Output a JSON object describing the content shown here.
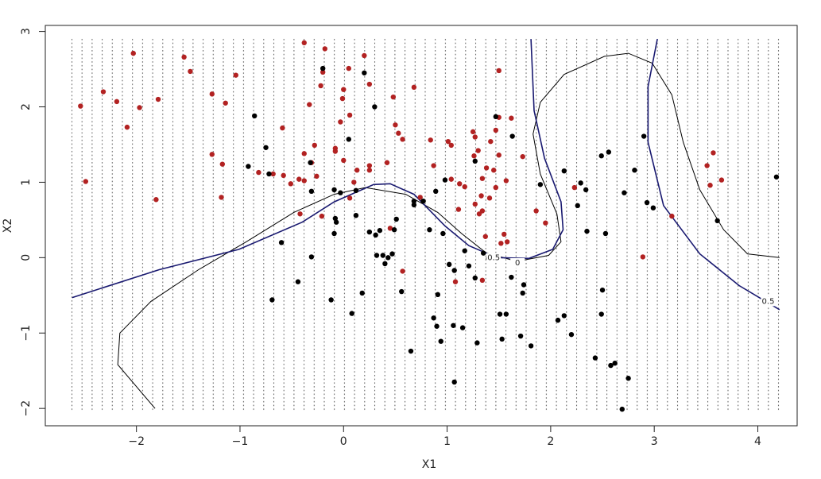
{
  "chart_data": {
    "type": "scatter",
    "xlabel": "X1",
    "ylabel": "X2",
    "xlim": [
      -2.88,
      4.38
    ],
    "ylim": [
      -2.23,
      3.08
    ],
    "xticks": [
      {
        "value": -2,
        "label": "−2"
      },
      {
        "value": -1,
        "label": "−1"
      },
      0,
      1,
      2,
      3,
      4
    ],
    "yticks": [
      {
        "value": -2,
        "label": "−2"
      },
      {
        "value": -1,
        "label": "−1"
      },
      0,
      1,
      2,
      3
    ],
    "series": [
      {
        "color": "#b22222",
        "x": [
          -2.54,
          -2.49,
          -2.32,
          -2.19,
          -2.09,
          -2.03,
          -1.97,
          -1.81,
          -1.79,
          -1.54,
          -1.48,
          -1.27,
          -1.27,
          -1.17,
          -1.18,
          -1.14,
          -1.04,
          -0.82,
          -0.68,
          -0.59,
          -0.58,
          -0.51,
          -0.42,
          -0.43,
          -0.38,
          -0.38,
          -0.38,
          -0.33,
          -0.31,
          -0.28,
          -0.26,
          -0.22,
          -0.2,
          -0.18,
          -0.21,
          -0.08,
          -0.08,
          -0.03,
          -0.01,
          0,
          0,
          0.05,
          0.06,
          0.06,
          0.1,
          0.13,
          0.2,
          0.25,
          0.25,
          0.25,
          0.42,
          0.45,
          0.48,
          0.5,
          0.53,
          0.57,
          0.57,
          0.68,
          0.74,
          0.84,
          0.87,
          1.01,
          1.04,
          1.04,
          1.08,
          1.11,
          1.12,
          1.17,
          1.25,
          1.26,
          1.27,
          1.27,
          1.3,
          1.31,
          1.33,
          1.34,
          1.34,
          1.34,
          1.37,
          1.38,
          1.41,
          1.42,
          1.45,
          1.47,
          1.47,
          1.5,
          1.5,
          1.5,
          1.52,
          1.55,
          1.57,
          1.58,
          1.62,
          1.73,
          1.86,
          1.95,
          2.23,
          2.89,
          3.17,
          3.51,
          3.54,
          3.57,
          3.65
        ],
        "y": [
          2.01,
          1.01,
          2.2,
          2.07,
          1.73,
          2.71,
          1.99,
          0.77,
          2.1,
          2.66,
          2.47,
          2.17,
          1.37,
          1.24,
          0.8,
          2.05,
          2.42,
          1.13,
          1.11,
          1.72,
          1.09,
          0.98,
          0.58,
          1.04,
          1.38,
          2.85,
          1.02,
          2.03,
          1.26,
          1.49,
          1.08,
          2.28,
          2.46,
          2.77,
          0.55,
          1.45,
          1.41,
          1.8,
          2.11,
          2.23,
          1.29,
          2.51,
          1.89,
          0.79,
          1.0,
          1.16,
          2.68,
          2.3,
          1.22,
          1.16,
          1.26,
          0.39,
          2.13,
          1.76,
          1.65,
          1.57,
          -0.18,
          2.26,
          0.8,
          1.56,
          1.22,
          1.54,
          1.49,
          1.04,
          -0.32,
          0.64,
          0.98,
          0.94,
          1.67,
          1.35,
          1.6,
          0.71,
          1.42,
          0.58,
          0.82,
          -0.3,
          0.62,
          1.05,
          0.28,
          1.19,
          0.79,
          1.54,
          1.16,
          1.69,
          0.93,
          2.48,
          1.36,
          1.86,
          0.19,
          0.31,
          1.02,
          0.21,
          1.85,
          1.34,
          0.62,
          0.46,
          0.93,
          0.01,
          0.55,
          1.22,
          0.96,
          1.39,
          1.03
        ]
      },
      {
        "color": "#000000",
        "x": [
          -0.92,
          -0.86,
          -0.75,
          -0.72,
          -0.69,
          -0.6,
          -0.44,
          -0.32,
          -0.31,
          -0.31,
          -0.2,
          -0.12,
          -0.09,
          -0.09,
          -0.08,
          -0.07,
          -0.03,
          0.05,
          0.08,
          0.12,
          0.12,
          0.18,
          0.2,
          0.25,
          0.3,
          0.31,
          0.32,
          0.35,
          0.38,
          0.4,
          0.43,
          0.47,
          0.49,
          0.51,
          0.56,
          0.65,
          0.68,
          0.68,
          0.77,
          0.83,
          0.87,
          0.9,
          0.89,
          0.91,
          0.94,
          0.96,
          0.98,
          1.02,
          1.06,
          1.07,
          1.07,
          1.15,
          1.17,
          1.21,
          1.27,
          1.27,
          1.29,
          1.35,
          1.4,
          1.47,
          1.51,
          1.53,
          1.57,
          1.62,
          1.63,
          1.71,
          1.73,
          1.74,
          1.81,
          1.9,
          2.07,
          2.13,
          2.13,
          2.2,
          2.26,
          2.29,
          2.34,
          2.35,
          2.43,
          2.49,
          2.49,
          2.5,
          2.53,
          2.56,
          2.58,
          2.62,
          2.69,
          2.71,
          2.75,
          2.81,
          2.9,
          2.93,
          2.99,
          3.61,
          4.18
        ],
        "y": [
          1.21,
          1.88,
          1.46,
          1.11,
          -0.56,
          0.2,
          -0.32,
          1.26,
          0.88,
          0.01,
          2.51,
          -0.56,
          0.9,
          0.32,
          0.52,
          0.47,
          0.86,
          1.57,
          -0.74,
          0.89,
          0.56,
          -0.47,
          2.45,
          0.34,
          2.0,
          0.3,
          0.03,
          0.36,
          0.03,
          -0.08,
          0,
          0.05,
          0.37,
          0.51,
          -0.45,
          -1.24,
          0.75,
          0.7,
          0.75,
          0.37,
          -0.8,
          -0.91,
          0.88,
          -0.49,
          -1.11,
          0.32,
          1.03,
          -0.09,
          -0.9,
          -0.17,
          -1.65,
          -0.93,
          0.09,
          -0.11,
          -0.27,
          1.28,
          -1.13,
          0.06,
          -0.01,
          1.87,
          -0.75,
          -1.08,
          -0.75,
          -0.26,
          1.61,
          -1.04,
          -0.47,
          -0.36,
          -1.17,
          0.97,
          -0.83,
          1.15,
          -0.77,
          -1.02,
          0.69,
          0.99,
          0.9,
          0.35,
          -1.33,
          1.35,
          -0.75,
          -0.43,
          0.32,
          1.4,
          -1.43,
          -1.4,
          -2.01,
          0.86,
          -1.6,
          1.16,
          1.61,
          0.73,
          0.66,
          0.49,
          1.07
        ]
      }
    ],
    "contours": [
      {
        "color": "#000000",
        "x": [
          -1.82,
          -2.18,
          -2.16,
          -1.86,
          -1.4,
          -0.94,
          -0.48,
          -0.09,
          0.21,
          0.6,
          0.91,
          1.14,
          1.37,
          1.67,
          1.98,
          2.1,
          2.06,
          1.9,
          1.83,
          1.9,
          2.13,
          2.52,
          2.75,
          2.98,
          3.17,
          3.28,
          3.44,
          3.67,
          3.9,
          4.21
        ],
        "y": [
          -2.0,
          -1.42,
          -1.0,
          -0.58,
          -0.16,
          0.21,
          0.6,
          0.84,
          0.93,
          0.84,
          0.6,
          0.32,
          0.07,
          -0.05,
          0.03,
          0.21,
          0.58,
          1.11,
          1.64,
          2.06,
          2.43,
          2.67,
          2.71,
          2.58,
          2.16,
          1.53,
          0.9,
          0.37,
          0.05,
          0.0
        ]
      },
      {
        "color": "#191970",
        "x": [
          -2.62,
          -1.78,
          -1.01,
          -0.4,
          -0.09,
          0.29,
          0.45,
          0.68,
          0.98,
          1.21,
          1.48,
          1.79,
          2.02,
          2.12,
          2.1,
          1.94,
          1.84,
          1.81
        ],
        "y": [
          -0.53,
          -0.16,
          0.11,
          0.47,
          0.74,
          0.97,
          0.98,
          0.84,
          0.42,
          0.16,
          0.0,
          -0.01,
          0.11,
          0.37,
          0.74,
          1.32,
          1.95,
          2.9
        ]
      },
      {
        "color": "#191970",
        "x": [
          3.03,
          2.94,
          2.94,
          3.09,
          3.44,
          3.82,
          4.21
        ],
        "y": [
          2.9,
          2.27,
          1.53,
          0.69,
          0.05,
          -0.37,
          -0.69
        ]
      }
    ],
    "annotations": [
      {
        "text": "0.5",
        "x": 1.45,
        "y": 0.0
      },
      {
        "text": "0",
        "x": 1.68,
        "y": -0.07
      },
      {
        "text": "0.5",
        "x": 4.1,
        "y": -0.58
      }
    ]
  }
}
